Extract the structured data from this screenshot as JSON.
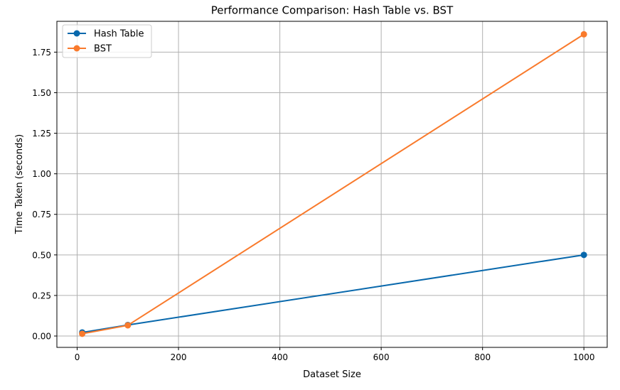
{
  "chart_data": {
    "type": "line",
    "title": "Performance Comparison: Hash Table vs. BST",
    "xlabel": "Dataset Size",
    "ylabel": "Time Taken (seconds)",
    "xlim": [
      -40,
      1046
    ],
    "ylim": [
      -0.07,
      1.94
    ],
    "xticks": [
      0,
      200,
      400,
      600,
      800,
      1000
    ],
    "xtick_labels": [
      "0",
      "200",
      "400",
      "600",
      "800",
      "1000"
    ],
    "yticks": [
      0.0,
      0.25,
      0.5,
      0.75,
      1.0,
      1.25,
      1.5,
      1.75
    ],
    "ytick_labels": [
      "0.00",
      "0.25",
      "0.50",
      "0.75",
      "1.00",
      "1.25",
      "1.50",
      "1.75"
    ],
    "grid": true,
    "legend_position": "top-left",
    "x": [
      10,
      100,
      1000
    ],
    "series": [
      {
        "name": "Hash Table",
        "color": "#0868ac",
        "marker": "circle",
        "values": [
          0.022,
          0.068,
          0.5
        ]
      },
      {
        "name": "BST",
        "color": "#f97a2c",
        "marker": "circle",
        "values": [
          0.014,
          0.066,
          1.86
        ]
      }
    ]
  }
}
